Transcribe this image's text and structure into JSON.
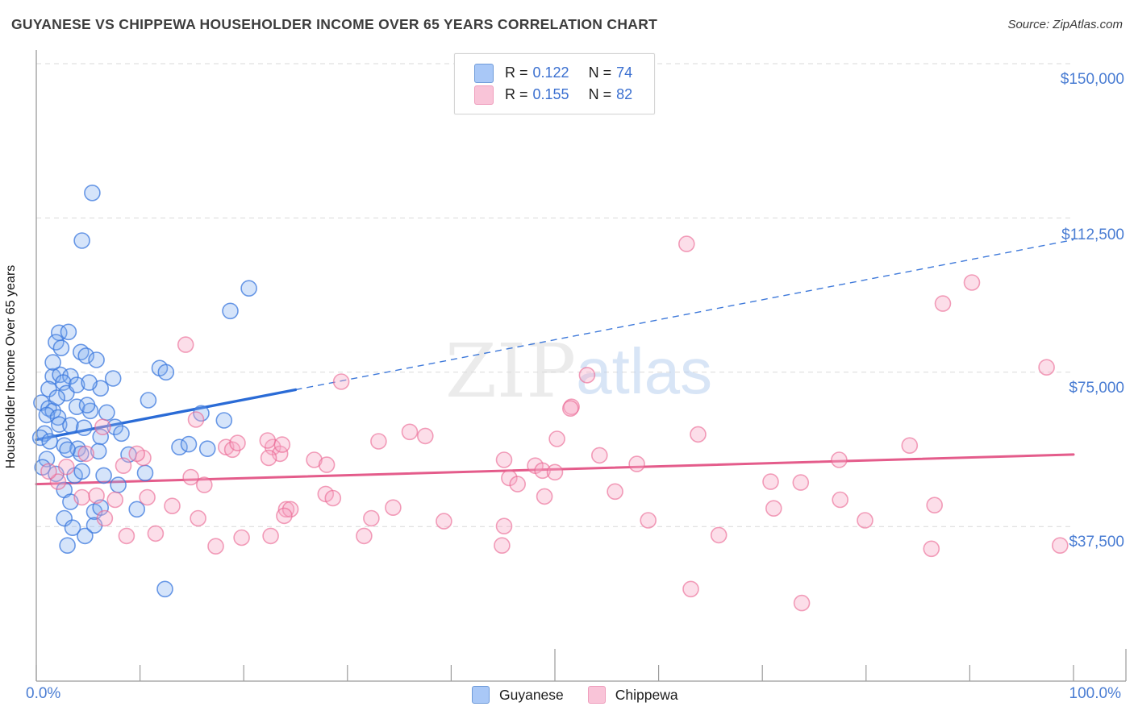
{
  "header": {
    "title": "GUYANESE VS CHIPPEWA HOUSEHOLDER INCOME OVER 65 YEARS CORRELATION CHART",
    "source": "Source: ZipAtlas.com"
  },
  "top_legend": {
    "rows": [
      {
        "r_label": "R =",
        "r_value": "0.122",
        "n_label": "N =",
        "n_value": "74"
      },
      {
        "r_label": "R =",
        "r_value": "0.155",
        "n_label": "N =",
        "n_value": "82"
      }
    ]
  },
  "watermark": {
    "zip": "ZIP",
    "atlas": "atlas"
  },
  "y_axis": {
    "label": "Householder Income Over 65 years",
    "ticks": [
      "$150,000",
      "$112,500",
      "$75,000",
      "$37,500"
    ]
  },
  "x_axis": {
    "min_label": "0.0%",
    "max_label": "100.0%"
  },
  "bottom_legend": {
    "items": [
      {
        "label": "Guyanese"
      },
      {
        "label": "Chippewa"
      }
    ]
  },
  "colors": {
    "blue_stroke": "#3b78dd",
    "blue_fill": "#7fadf0",
    "blue_line": "#2a6bd6",
    "pink_stroke": "#e9638f",
    "pink_fill": "#f7a8c6",
    "pink_line": "#e45c8b",
    "grid": "#d9d9d9",
    "axis": "#9b9b9b",
    "tick_label": "#4a7dd3"
  },
  "chart_data": {
    "type": "scatter",
    "title": "Guyanese vs Chippewa Householder Income Over 65 Years Correlation Chart",
    "x_axis": {
      "min": 0,
      "max": 100,
      "tick_step_percent": 10,
      "min_label": "0.0%",
      "max_label": "100.0%"
    },
    "y_axis": {
      "min": 0,
      "max": 150000,
      "gridline_values": [
        150000,
        112500,
        75000,
        37500
      ],
      "label": "Householder Income Over 65 years"
    },
    "legend_position": "top-center",
    "grid": "dashed-horizontal",
    "series": [
      {
        "name": "Guyanese",
        "R": 0.122,
        "N": 74,
        "trend": {
          "x_start": 0,
          "v_start": 58600,
          "x_end": 100,
          "v_end": 107200,
          "solid_until_x": 25
        },
        "points": [
          [
            2.2,
            84600
          ],
          [
            3.1,
            84800
          ],
          [
            1.9,
            82300
          ],
          [
            2.4,
            80900
          ],
          [
            4.3,
            79900
          ],
          [
            4.8,
            79000
          ],
          [
            5.8,
            78000
          ],
          [
            1.6,
            74000
          ],
          [
            2.3,
            74400
          ],
          [
            3.3,
            74000
          ],
          [
            2.6,
            72500
          ],
          [
            1.2,
            70900
          ],
          [
            2.9,
            69900
          ],
          [
            6.2,
            71100
          ],
          [
            0.5,
            67600
          ],
          [
            1.2,
            66200
          ],
          [
            1.6,
            65600
          ],
          [
            1.0,
            64600
          ],
          [
            2.1,
            64000
          ],
          [
            3.9,
            66600
          ],
          [
            5.2,
            65600
          ],
          [
            4.9,
            67000
          ],
          [
            6.8,
            65200
          ],
          [
            2.2,
            62300
          ],
          [
            3.3,
            62100
          ],
          [
            0.8,
            60100
          ],
          [
            0.4,
            59100
          ],
          [
            1.3,
            58200
          ],
          [
            2.7,
            57200
          ],
          [
            4.0,
            56400
          ],
          [
            6.2,
            59300
          ],
          [
            7.6,
            61700
          ],
          [
            8.2,
            60100
          ],
          [
            4.3,
            55200
          ],
          [
            6.0,
            55800
          ],
          [
            11.9,
            76000
          ],
          [
            5.4,
            118600
          ],
          [
            4.4,
            107000
          ],
          [
            20.5,
            95400
          ],
          [
            18.7,
            89900
          ],
          [
            12.5,
            75000
          ],
          [
            15.9,
            65000
          ],
          [
            18.1,
            63300
          ],
          [
            13.8,
            56800
          ],
          [
            16.5,
            56400
          ],
          [
            9.7,
            41700
          ],
          [
            12.4,
            22300
          ],
          [
            3.0,
            56200
          ],
          [
            1.0,
            53900
          ],
          [
            0.6,
            51900
          ],
          [
            1.9,
            50300
          ],
          [
            3.7,
            49900
          ],
          [
            4.4,
            50900
          ],
          [
            6.5,
            49900
          ],
          [
            7.9,
            47600
          ],
          [
            2.7,
            46400
          ],
          [
            3.3,
            43500
          ],
          [
            5.6,
            41100
          ],
          [
            6.2,
            42100
          ],
          [
            2.7,
            39500
          ],
          [
            3.5,
            37200
          ],
          [
            4.7,
            35200
          ],
          [
            5.6,
            37800
          ],
          [
            3.0,
            32900
          ],
          [
            1.6,
            77400
          ],
          [
            3.9,
            71900
          ],
          [
            5.1,
            72500
          ],
          [
            7.4,
            73500
          ],
          [
            2.0,
            68800
          ],
          [
            4.6,
            61500
          ],
          [
            8.9,
            55000
          ],
          [
            10.5,
            50500
          ],
          [
            10.8,
            68200
          ],
          [
            14.7,
            57500
          ]
        ]
      },
      {
        "name": "Chippewa",
        "R": 0.155,
        "N": 82,
        "trend": {
          "x_start": 0,
          "v_start": 47800,
          "x_end": 100,
          "v_end": 55000,
          "solid_until_x": 100
        },
        "points": [
          [
            14.4,
            81700
          ],
          [
            29.4,
            72700
          ],
          [
            53.1,
            74300
          ],
          [
            51.6,
            66600
          ],
          [
            62.7,
            106200
          ],
          [
            90.2,
            96800
          ],
          [
            87.4,
            91700
          ],
          [
            97.4,
            76200
          ],
          [
            63.8,
            59900
          ],
          [
            54.3,
            54800
          ],
          [
            57.9,
            52700
          ],
          [
            55.8,
            46000
          ],
          [
            70.8,
            48400
          ],
          [
            73.7,
            48200
          ],
          [
            77.4,
            53700
          ],
          [
            77.5,
            44000
          ],
          [
            71.1,
            41900
          ],
          [
            59.0,
            39000
          ],
          [
            65.8,
            35400
          ],
          [
            84.2,
            57200
          ],
          [
            86.6,
            42700
          ],
          [
            79.9,
            39000
          ],
          [
            98.7,
            32900
          ],
          [
            86.3,
            32100
          ],
          [
            63.1,
            22300
          ],
          [
            73.8,
            18900
          ],
          [
            22.8,
            56800
          ],
          [
            23.5,
            55200
          ],
          [
            26.8,
            53700
          ],
          [
            28.0,
            52500
          ],
          [
            33.0,
            58200
          ],
          [
            37.5,
            59500
          ],
          [
            27.9,
            45400
          ],
          [
            28.6,
            44400
          ],
          [
            24.1,
            41700
          ],
          [
            32.3,
            39500
          ],
          [
            34.4,
            42100
          ],
          [
            31.6,
            35200
          ],
          [
            39.3,
            38800
          ],
          [
            45.1,
            37600
          ],
          [
            44.9,
            32900
          ],
          [
            24.5,
            41700
          ],
          [
            45.1,
            53700
          ],
          [
            45.6,
            49300
          ],
          [
            46.4,
            47800
          ],
          [
            48.1,
            52300
          ],
          [
            48.8,
            51100
          ],
          [
            50.2,
            58800
          ],
          [
            50.0,
            50700
          ],
          [
            51.5,
            66200
          ],
          [
            15.4,
            63500
          ],
          [
            22.3,
            58400
          ],
          [
            23.7,
            57400
          ],
          [
            4.8,
            55200
          ],
          [
            10.3,
            54200
          ],
          [
            8.4,
            52300
          ],
          [
            2.1,
            48400
          ],
          [
            4.4,
            44600
          ],
          [
            5.8,
            45000
          ],
          [
            7.6,
            44000
          ],
          [
            6.6,
            39500
          ],
          [
            8.7,
            35200
          ],
          [
            11.5,
            35800
          ],
          [
            10.7,
            44600
          ],
          [
            13.1,
            42500
          ],
          [
            14.9,
            49500
          ],
          [
            16.2,
            47600
          ],
          [
            15.6,
            39500
          ],
          [
            17.3,
            32700
          ],
          [
            19.8,
            34800
          ],
          [
            22.6,
            35200
          ],
          [
            23.9,
            40100
          ],
          [
            18.3,
            56800
          ],
          [
            18.9,
            56200
          ],
          [
            22.4,
            54200
          ],
          [
            6.4,
            61700
          ],
          [
            9.7,
            55200
          ],
          [
            1.2,
            50900
          ],
          [
            19.4,
            57800
          ],
          [
            36.0,
            60500
          ],
          [
            49.0,
            44800
          ],
          [
            2.9,
            52000
          ]
        ]
      }
    ]
  }
}
